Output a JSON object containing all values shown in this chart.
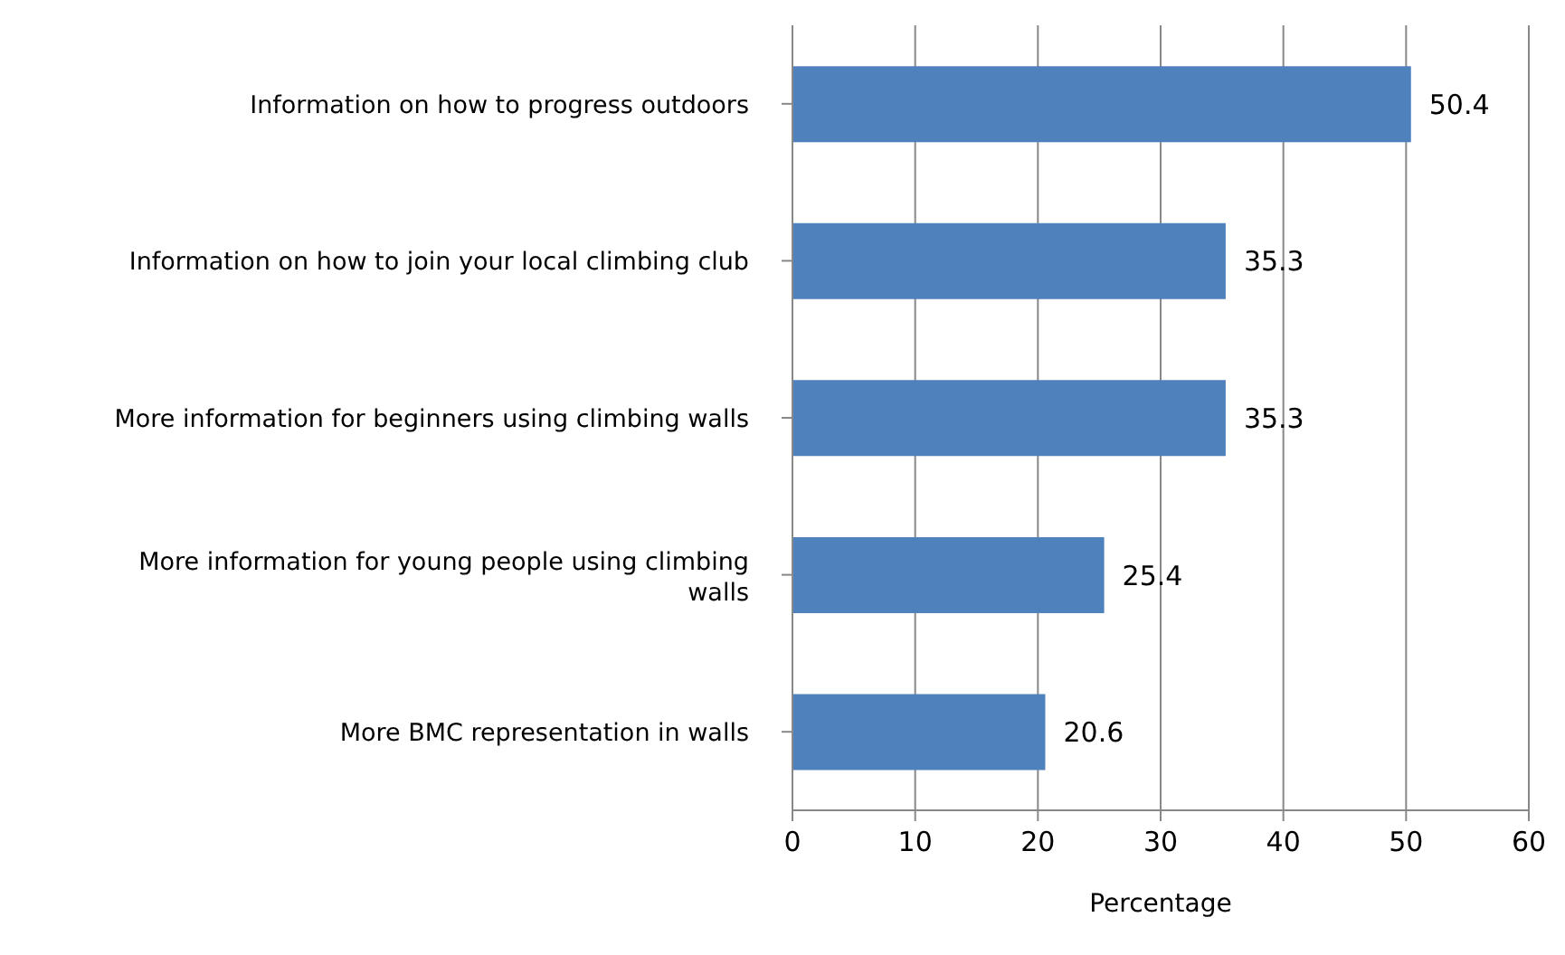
{
  "chart_data": {
    "type": "bar",
    "orientation": "horizontal",
    "categories": [
      "Information on how to progress outdoors",
      "Information on how to join your local climbing club",
      "More information for beginners using climbing walls",
      "More information for young people using climbing walls",
      "More BMC representation in walls"
    ],
    "values": [
      50.4,
      35.3,
      35.3,
      25.4,
      20.6
    ],
    "color": "#4f81bd",
    "xlim": [
      0,
      60
    ],
    "xticks": [
      0,
      10,
      20,
      30,
      40,
      50,
      60
    ],
    "grid": "x",
    "data_labels": true,
    "xlabel": "Percentage"
  }
}
